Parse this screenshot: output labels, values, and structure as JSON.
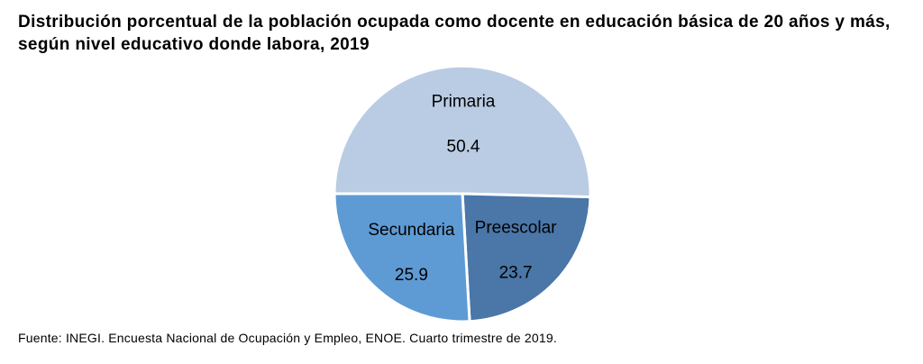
{
  "chart_data": {
    "type": "pie",
    "title": "Distribución porcentual de la población ocupada como docente en educación básica de 20 años y más, según nivel educativo donde labora, 2019",
    "slices": [
      {
        "name": "Primaria",
        "value": 50.4,
        "value_label": "50.4",
        "color": "#b9cce4"
      },
      {
        "name": "Preescolar",
        "value": 23.7,
        "value_label": "23.7",
        "color": "#4a76a8"
      },
      {
        "name": "Secundaria",
        "value": 25.9,
        "value_label": "25.9",
        "color": "#5e9bd4"
      }
    ],
    "source": "Fuente: INEGI. Encuesta Nacional de Ocupación y Empleo, ENOE. Cuarto trimestre de 2019."
  }
}
